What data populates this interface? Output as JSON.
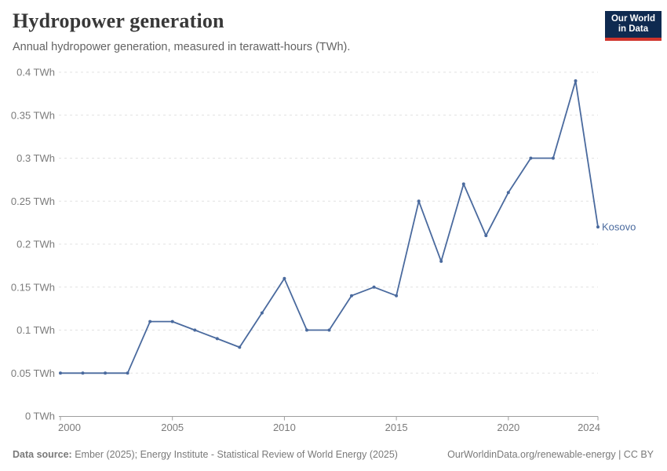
{
  "header": {
    "title": "Hydropower generation",
    "subtitle": "Annual hydropower generation, measured in terawatt-hours (TWh).",
    "logo": {
      "line1": "Our World",
      "line2": "in Data",
      "bg_color": "#0f2a50",
      "accent_color": "#d0342c"
    }
  },
  "chart_data": {
    "type": "line",
    "title": "Hydropower generation",
    "subtitle": "Annual hydropower generation, measured in terawatt-hours (TWh).",
    "unit": "TWh",
    "x": [
      2000,
      2001,
      2002,
      2003,
      2004,
      2005,
      2006,
      2007,
      2008,
      2009,
      2010,
      2011,
      2012,
      2013,
      2014,
      2015,
      2016,
      2017,
      2018,
      2019,
      2020,
      2021,
      2022,
      2023,
      2024
    ],
    "series": [
      {
        "name": "Kosovo",
        "color": "#4a6a9e",
        "values": [
          0.05,
          0.05,
          0.05,
          0.05,
          0.11,
          0.11,
          0.1,
          0.09,
          0.08,
          0.12,
          0.16,
          0.1,
          0.1,
          0.14,
          0.15,
          0.14,
          0.25,
          0.18,
          0.27,
          0.21,
          0.26,
          0.3,
          0.3,
          0.39,
          0.22
        ]
      }
    ],
    "xlim": [
      2000,
      2024
    ],
    "ylim": [
      0,
      0.4
    ],
    "xticks": [
      2000,
      2005,
      2010,
      2015,
      2020,
      2024
    ],
    "yticks": [
      0,
      0.05,
      0.1,
      0.15,
      0.2,
      0.25,
      0.3,
      0.35,
      0.4
    ],
    "ytick_labels": [
      "0 TWh",
      "0.05 TWh",
      "0.1 TWh",
      "0.15 TWh",
      "0.2 TWh",
      "0.25 TWh",
      "0.3 TWh",
      "0.35 TWh",
      "0.4 TWh"
    ],
    "grid": "horizontal-dashed",
    "legend_position": "end-of-line",
    "end_label": "Kosovo"
  },
  "footer": {
    "source_label": "Data source:",
    "source_text": " Ember (2025); Energy Institute - Statistical Review of World Energy (2025)",
    "link_text": "OurWorldinData.org/renewable-energy | CC BY"
  },
  "colors": {
    "line": "#4a6a9e",
    "grid": "#e1e1e1",
    "axis": "#9e9e9e",
    "tick_text": "#7b7b7b",
    "title_text": "#383838",
    "subtitle_text": "#636363"
  }
}
